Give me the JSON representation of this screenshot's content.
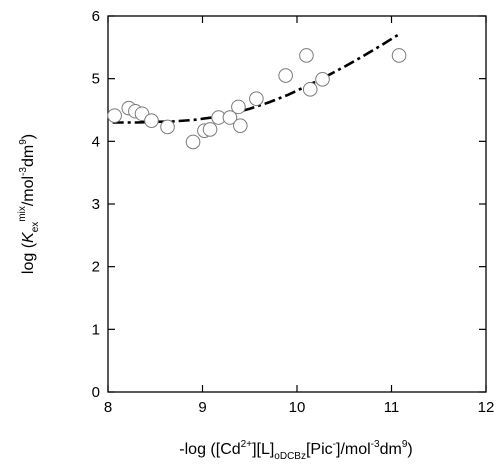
{
  "chart_data": {
    "type": "scatter",
    "title": "",
    "xlabel": {
      "pre": "-log ([Cd",
      "sup1": "2+",
      "mid1": "][L]",
      "sub1": "oDCBz",
      "mid2": "[Pic",
      "sup2": "-",
      "mid3": "]/mol",
      "sup3": "-3",
      "mid4": "dm",
      "sup4": "9",
      "post": ")"
    },
    "ylabel": {
      "pre": "log (",
      "k": "K",
      "sub": "ex",
      "sup": "mix",
      "mid": "/mol",
      "sup2": "-3",
      "mid2": "dm",
      "sup3": "9",
      "post": ")"
    },
    "xlim": [
      8,
      12
    ],
    "ylim": [
      0,
      6
    ],
    "x_ticks": [
      "8",
      "9",
      "10",
      "11",
      "12"
    ],
    "y_ticks": [
      "0",
      "1",
      "2",
      "3",
      "4",
      "5",
      "6"
    ],
    "grid": false,
    "legend": "none",
    "series": [
      {
        "kind": "points",
        "marker": "open-circle",
        "x": [
          8.07,
          8.22,
          8.29,
          8.36,
          8.46,
          8.63,
          8.9,
          9.02,
          9.08,
          9.17,
          9.29,
          9.38,
          9.4,
          9.57,
          9.88,
          10.1,
          10.14,
          10.27,
          11.08
        ],
        "y": [
          4.41,
          4.53,
          4.48,
          4.44,
          4.33,
          4.23,
          3.99,
          4.17,
          4.19,
          4.38,
          4.38,
          4.55,
          4.25,
          4.68,
          5.05,
          5.37,
          4.83,
          4.99,
          5.37
        ]
      },
      {
        "kind": "fit-curve",
        "style": "dash-dot",
        "x": [
          8.05,
          8.3,
          8.5,
          8.7,
          8.9,
          9.1,
          9.3,
          9.5,
          9.7,
          9.9,
          10.1,
          10.3,
          10.5,
          10.7,
          10.9,
          11.08
        ],
        "y": [
          4.3,
          4.3,
          4.31,
          4.32,
          4.34,
          4.38,
          4.44,
          4.52,
          4.62,
          4.74,
          4.88,
          5.03,
          5.19,
          5.36,
          5.54,
          5.71
        ]
      }
    ]
  }
}
